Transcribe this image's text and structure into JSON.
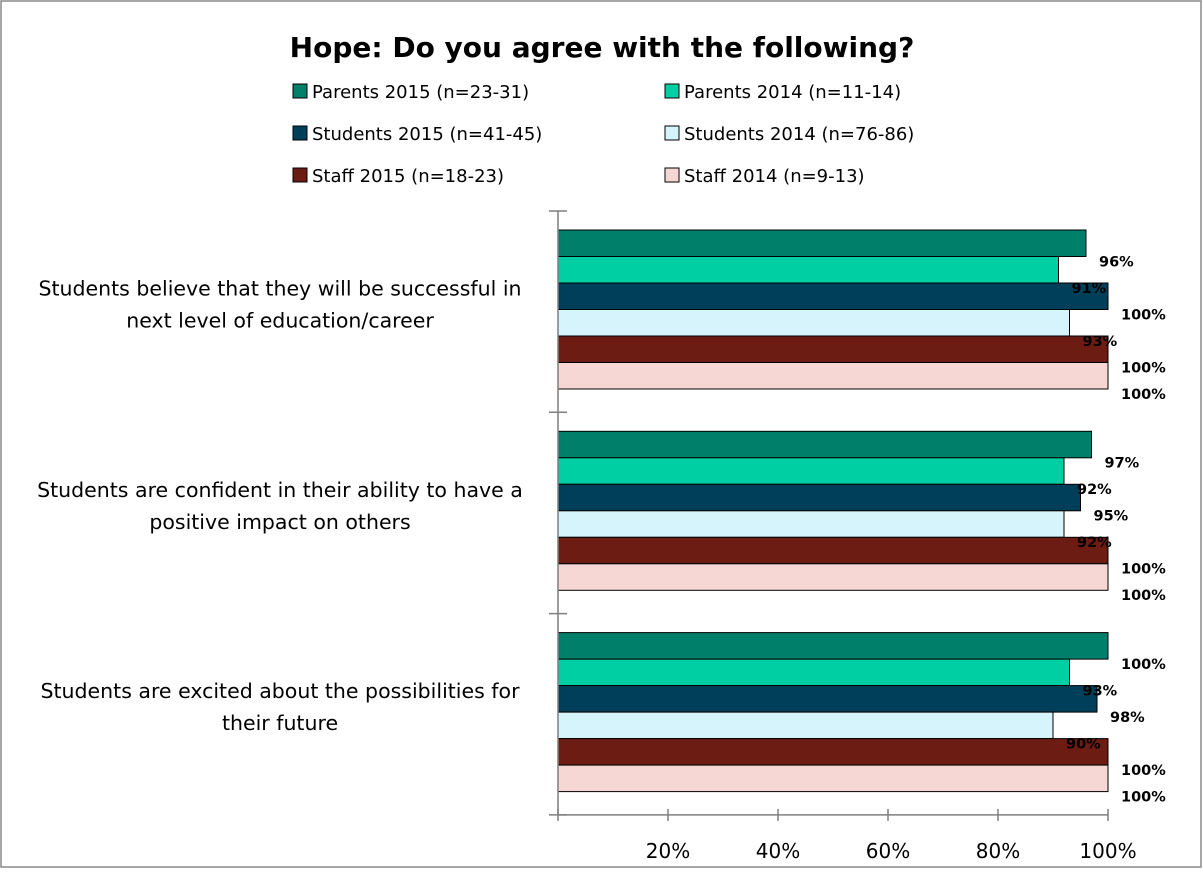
{
  "chart_data": {
    "type": "bar",
    "orientation": "horizontal",
    "title": "Hope: Do you agree with the following?",
    "categories": [
      [
        "Students believe that they will be successful in",
        "next level of education/career"
      ],
      [
        "Students are confident in their ability to have a",
        "positive impact on others"
      ],
      [
        "Students are excited about the possibilities for",
        "their future"
      ]
    ],
    "series": [
      {
        "name": "Parents 2015 (n=23-31)",
        "color": "#00806A",
        "values": [
          96,
          97,
          100
        ],
        "labels": [
          "96%",
          "97%",
          "100%"
        ]
      },
      {
        "name": "Parents 2014 (n=11-14)",
        "color": "#00CFA4",
        "values": [
          91,
          92,
          93
        ],
        "labels": [
          "91%",
          "92%",
          "93%"
        ]
      },
      {
        "name": "Students 2015 (n=41-45)",
        "color": "#003F5A",
        "values": [
          100,
          95,
          98
        ],
        "labels": [
          "100%",
          "95%",
          "98%"
        ]
      },
      {
        "name": "Students 2014 (n=76-86)",
        "color": "#D6F4FB",
        "values": [
          93,
          92,
          90
        ],
        "labels": [
          "93%",
          "92%",
          "90%"
        ]
      },
      {
        "name": "Staff 2015 (n=18-23)",
        "color": "#6D1C14",
        "values": [
          100,
          100,
          100
        ],
        "labels": [
          "100%",
          "100%",
          "100%"
        ]
      },
      {
        "name": "Staff 2014 (n=9-13)",
        "color": "#F7D7D3",
        "values": [
          100,
          100,
          100
        ],
        "labels": [
          "100%",
          "100%",
          "100%"
        ]
      }
    ],
    "xlim": [
      0,
      100
    ],
    "xticks": [
      20,
      40,
      60,
      80,
      100
    ],
    "xtick_labels": [
      "20%",
      "40%",
      "60%",
      "80%",
      "100%"
    ],
    "grid": false,
    "legend_position": "top"
  }
}
